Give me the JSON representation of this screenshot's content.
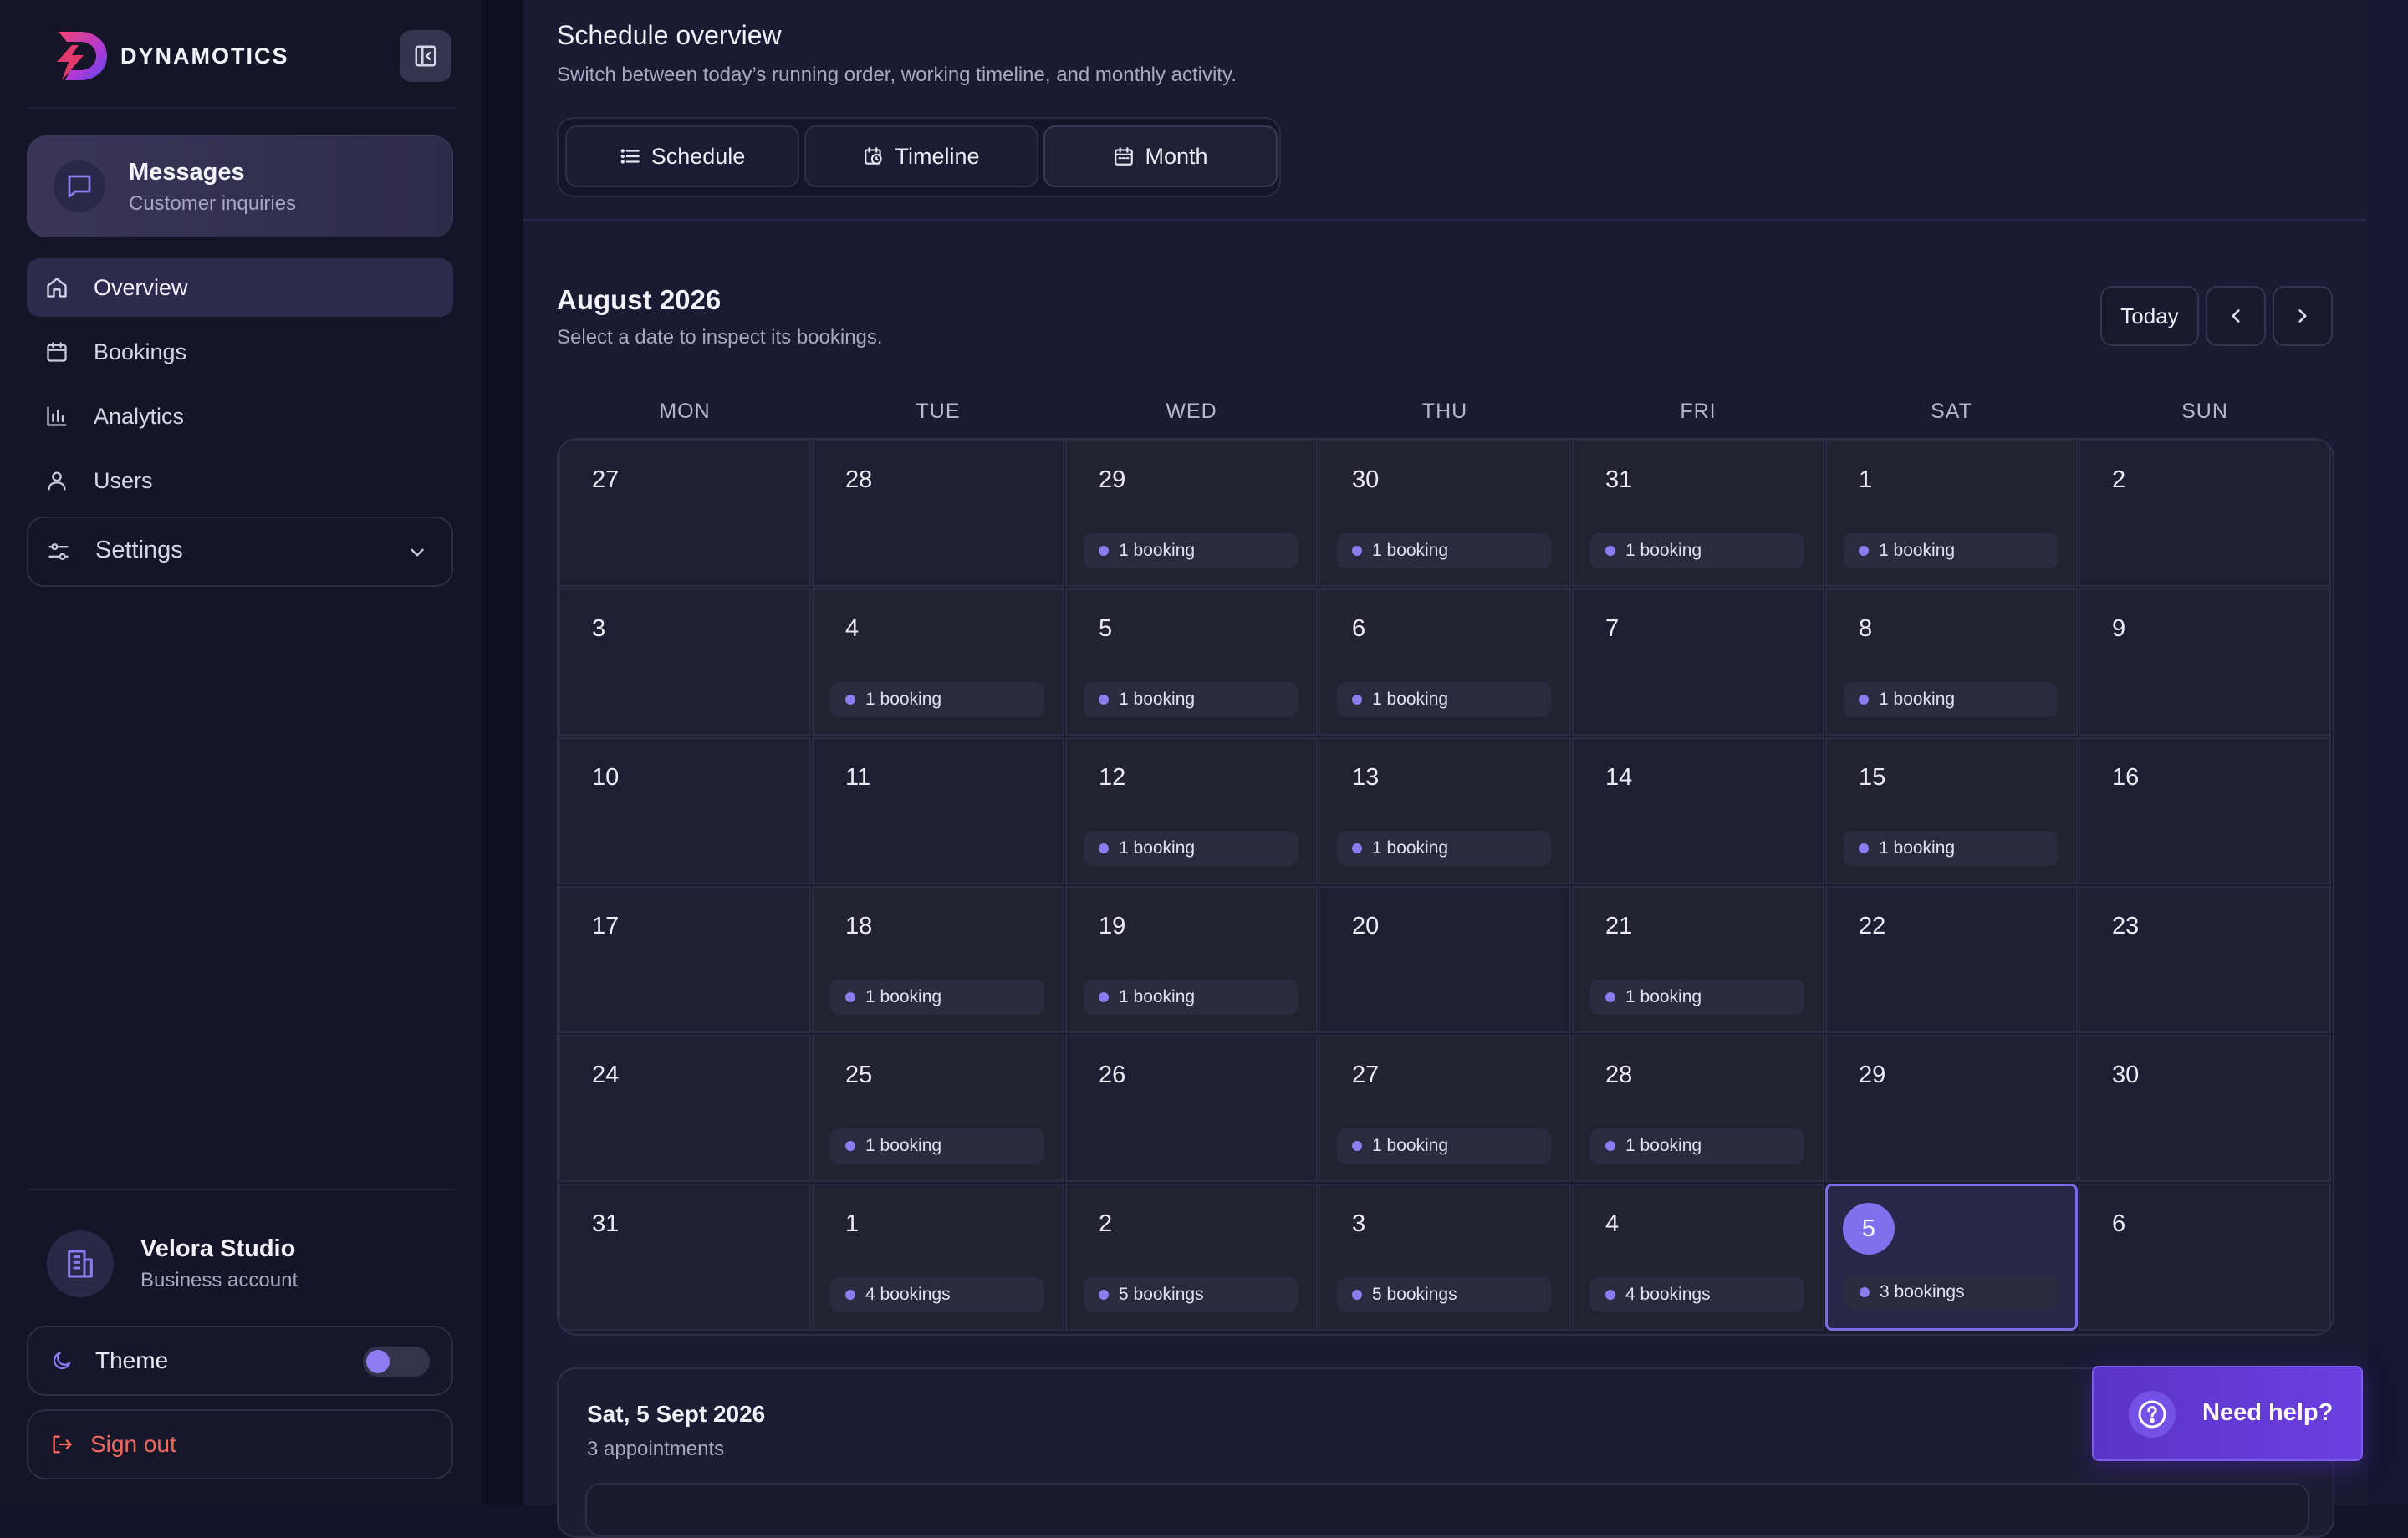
{
  "brand": {
    "name": "DYNAMOTICS"
  },
  "sidebar": {
    "messages": {
      "title": "Messages",
      "subtitle": "Customer inquiries"
    },
    "nav": [
      {
        "label": "Overview",
        "icon": "home-icon",
        "active": true
      },
      {
        "label": "Bookings",
        "icon": "calendar-icon",
        "active": false
      },
      {
        "label": "Analytics",
        "icon": "bar-chart-icon",
        "active": false
      },
      {
        "label": "Users",
        "icon": "user-icon",
        "active": false
      }
    ],
    "settings": {
      "label": "Settings"
    },
    "account": {
      "name": "Velora Studio",
      "type": "Business account"
    },
    "theme": {
      "label": "Theme"
    },
    "signout": {
      "label": "Sign out"
    }
  },
  "header": {
    "title": "Schedule overview",
    "subtitle": "Switch between today’s running order, working timeline, and monthly activity.",
    "tabs": [
      {
        "label": "Schedule",
        "icon": "list-icon"
      },
      {
        "label": "Timeline",
        "icon": "clock-calendar-icon"
      },
      {
        "label": "Month",
        "icon": "calendar-icon",
        "active": true
      }
    ]
  },
  "calendar": {
    "month_title": "August 2026",
    "subtitle": "Select a date to inspect its bookings.",
    "today_label": "Today",
    "weekdays": [
      "MON",
      "TUE",
      "WED",
      "THU",
      "FRI",
      "SAT",
      "SUN"
    ],
    "weeks": [
      [
        {
          "day": "27",
          "bookings": ""
        },
        {
          "day": "28",
          "bookings": ""
        },
        {
          "day": "29",
          "bookings": "1 booking"
        },
        {
          "day": "30",
          "bookings": "1 booking"
        },
        {
          "day": "31",
          "bookings": "1 booking"
        },
        {
          "day": "1",
          "bookings": "1 booking"
        },
        {
          "day": "2",
          "bookings": ""
        }
      ],
      [
        {
          "day": "3",
          "bookings": ""
        },
        {
          "day": "4",
          "bookings": "1 booking"
        },
        {
          "day": "5",
          "bookings": "1 booking"
        },
        {
          "day": "6",
          "bookings": "1 booking"
        },
        {
          "day": "7",
          "bookings": ""
        },
        {
          "day": "8",
          "bookings": "1 booking"
        },
        {
          "day": "9",
          "bookings": ""
        }
      ],
      [
        {
          "day": "10",
          "bookings": ""
        },
        {
          "day": "11",
          "bookings": ""
        },
        {
          "day": "12",
          "bookings": "1 booking"
        },
        {
          "day": "13",
          "bookings": "1 booking"
        },
        {
          "day": "14",
          "bookings": ""
        },
        {
          "day": "15",
          "bookings": "1 booking"
        },
        {
          "day": "16",
          "bookings": ""
        }
      ],
      [
        {
          "day": "17",
          "bookings": ""
        },
        {
          "day": "18",
          "bookings": "1 booking"
        },
        {
          "day": "19",
          "bookings": "1 booking"
        },
        {
          "day": "20",
          "bookings": ""
        },
        {
          "day": "21",
          "bookings": "1 booking"
        },
        {
          "day": "22",
          "bookings": ""
        },
        {
          "day": "23",
          "bookings": ""
        }
      ],
      [
        {
          "day": "24",
          "bookings": ""
        },
        {
          "day": "25",
          "bookings": "1 booking"
        },
        {
          "day": "26",
          "bookings": ""
        },
        {
          "day": "27",
          "bookings": "1 booking"
        },
        {
          "day": "28",
          "bookings": "1 booking"
        },
        {
          "day": "29",
          "bookings": ""
        },
        {
          "day": "30",
          "bookings": ""
        }
      ],
      [
        {
          "day": "31",
          "bookings": ""
        },
        {
          "day": "1",
          "bookings": "4 bookings"
        },
        {
          "day": "2",
          "bookings": "5 bookings"
        },
        {
          "day": "3",
          "bookings": "5 bookings"
        },
        {
          "day": "4",
          "bookings": "4 bookings"
        },
        {
          "day": "5",
          "bookings": "3 bookings",
          "selected": true
        },
        {
          "day": "6",
          "bookings": ""
        }
      ]
    ]
  },
  "day_detail": {
    "title": "Sat, 5 Sept 2026",
    "subtitle": "3 appointments"
  },
  "help": {
    "label": "Need help?"
  },
  "colors": {
    "accent": "#8170ec",
    "signout": "#f06a5e",
    "help_bg": "#6b3fe0"
  }
}
